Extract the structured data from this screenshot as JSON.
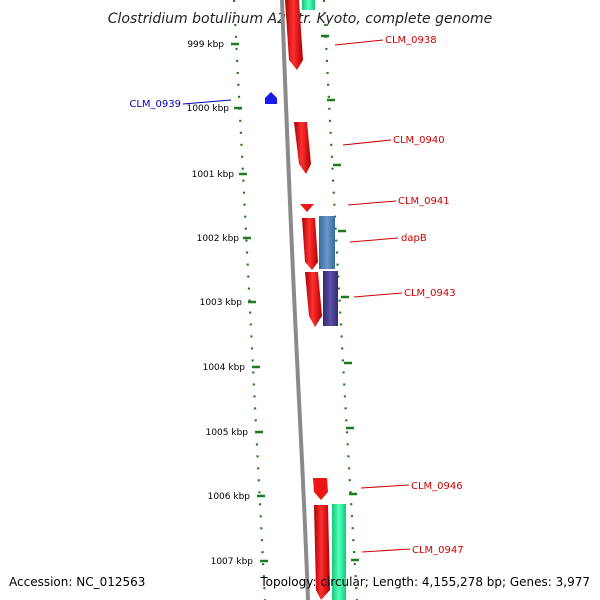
{
  "title": "Clostridium botulinum A2 str. Kyoto, complete genome",
  "accession": "Accession: NC_012563",
  "stats": "Topology: circular; Length: 4,155,278 bp; Genes: 3,977",
  "colors": {
    "backbone": "#808080",
    "tick": "#1e7a1e",
    "forward_label": "#cc0000",
    "reverse_label": "#0000bb",
    "cds_red": "#ee0000",
    "cds_blue": "#2222ee",
    "cds_steel": "#4f7fb0",
    "cds_indigo": "#4a3f8f",
    "cds_green": "#22ee99"
  },
  "ticks": [
    {
      "label": "999 kbp",
      "kbp": 999
    },
    {
      "label": "1000 kbp",
      "kbp": 1000
    },
    {
      "label": "1001 kbp",
      "kbp": 1001
    },
    {
      "label": "1002 kbp",
      "kbp": 1002
    },
    {
      "label": "1003 kbp",
      "kbp": 1003
    },
    {
      "label": "1004 kbp",
      "kbp": 1004
    },
    {
      "label": "1005 kbp",
      "kbp": 1005
    },
    {
      "label": "1006 kbp",
      "kbp": 1006
    },
    {
      "label": "1007 kbp",
      "kbp": 1007
    }
  ],
  "gene_labels": [
    {
      "text": "CLM_0938",
      "strand": "forward"
    },
    {
      "text": "CLM_0939",
      "strand": "reverse"
    },
    {
      "text": "CLM_0940",
      "strand": "forward"
    },
    {
      "text": "CLM_0941",
      "strand": "forward"
    },
    {
      "text": "dapB",
      "strand": "forward"
    },
    {
      "text": "CLM_0943",
      "strand": "forward"
    },
    {
      "text": "CLM_0946",
      "strand": "forward"
    },
    {
      "text": "CLM_0947",
      "strand": "forward"
    }
  ]
}
